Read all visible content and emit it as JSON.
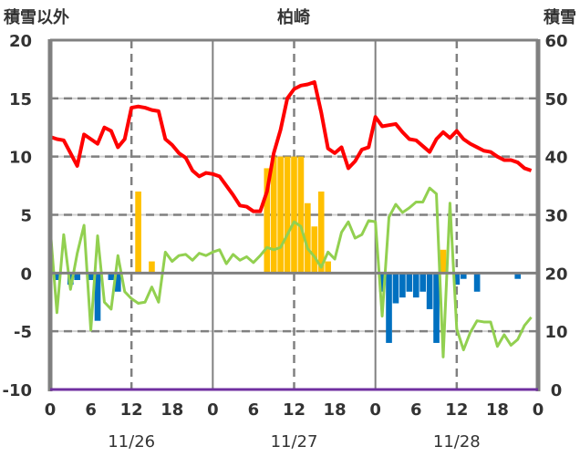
{
  "chart_data": {
    "type": "bar+line",
    "title": "柏崎",
    "left_axis_label": "積雪以外",
    "right_axis_label": "積雪",
    "left_ylim": [
      -10,
      20
    ],
    "left_ticks": [
      "20",
      "15",
      "10",
      "5",
      "0",
      "-5",
      "-10"
    ],
    "right_ylim": [
      0,
      60
    ],
    "right_ticks": [
      "60",
      "50",
      "40",
      "30",
      "20",
      "10",
      "0"
    ],
    "x_hours": 72,
    "x_tick_labels": [
      "0",
      "6",
      "12",
      "18",
      "0",
      "6",
      "12",
      "18",
      "0",
      "6",
      "12",
      "18",
      "0"
    ],
    "date_labels": [
      "11/26",
      "11/27",
      "11/28"
    ],
    "grid": true,
    "colors": {
      "snow_depth": "#ff0000",
      "temperature": "#92d050",
      "snowfall": "#ffc000",
      "decrease": "#0070c0",
      "axis": "#808080",
      "baseline": "#7030a0"
    },
    "series": [
      {
        "name": "snow_depth",
        "axis": "right",
        "type": "line",
        "values": [
          43.4,
          43,
          42.8,
          40.6,
          38.4,
          43.8,
          43,
          42.2,
          45,
          44.4,
          41.6,
          43,
          48.4,
          48.6,
          48.4,
          48,
          47.8,
          43,
          42,
          40.6,
          39.8,
          37.6,
          36.6,
          37.2,
          37,
          36.6,
          35,
          33.4,
          31.6,
          31.4,
          30.6,
          30.6,
          34,
          40.6,
          44.6,
          50,
          51.6,
          52.2,
          52.4,
          52.8,
          47.6,
          41.4,
          40.6,
          41.6,
          38,
          39.2,
          41.2,
          41.6,
          46.8,
          45.2,
          45.4,
          45.6,
          44.2,
          43,
          42.8,
          41.8,
          40.8,
          43,
          44.2,
          43.2,
          44.4,
          43,
          42.2,
          41.6,
          41,
          40.8,
          40,
          39.4,
          39.4,
          39,
          38,
          37.6
        ]
      },
      {
        "name": "temperature",
        "axis": "left",
        "type": "line",
        "values": [
          3.9,
          -3.4,
          3.3,
          -1.4,
          1.7,
          4.1,
          -4.9,
          3.2,
          -2.5,
          -3.1,
          1.5,
          -1.6,
          -2.2,
          -2.6,
          -2.5,
          -1.2,
          -2.5,
          1.8,
          1.0,
          1.5,
          1.6,
          1.1,
          1.7,
          1.5,
          1.8,
          2.0,
          0.8,
          1.6,
          1.1,
          1.4,
          0.9,
          1.5,
          2.2,
          2.0,
          2.2,
          3.3,
          4.4,
          4.0,
          2.1,
          1.4,
          0.5,
          1.8,
          1.2,
          3.5,
          4.4,
          3.0,
          3.3,
          4.5,
          4.4,
          -3.7,
          4.8,
          5.9,
          5.2,
          5.6,
          6.1,
          6.1,
          7.3,
          6.8,
          -7.2,
          6.0,
          -4.8,
          -6.6,
          -5.1,
          -4.1,
          -4.2,
          -4.2,
          -6.3,
          -5.3,
          -6.2,
          -5.7,
          -4.5,
          -3.8
        ]
      },
      {
        "name": "snow_change",
        "axis": "left",
        "type": "bar",
        "values": [
          0,
          -0.6,
          0,
          -1.0,
          -0.6,
          0,
          -0.6,
          -4.1,
          0,
          -0.6,
          -1.6,
          0,
          0,
          7.0,
          0,
          1.0,
          0,
          0,
          0,
          0,
          0,
          0,
          0,
          0,
          0,
          0,
          0,
          0,
          0,
          0,
          0,
          0,
          9.0,
          10,
          10,
          10,
          10,
          10,
          6,
          4,
          7,
          1,
          0,
          0,
          0,
          0,
          0,
          0,
          0,
          -1.6,
          -6,
          -2.6,
          -2.1,
          -1.6,
          -2.1,
          -1.6,
          -3.1,
          -6,
          2,
          0,
          -1,
          -0.5,
          0,
          -1.6,
          0,
          0,
          0,
          0,
          0,
          -0.5,
          0,
          0
        ]
      }
    ]
  }
}
